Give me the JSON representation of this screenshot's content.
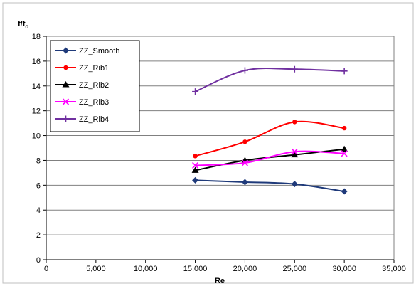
{
  "chart_data": {
    "type": "line",
    "xlabel": "Re",
    "ylabel_main": "f/f",
    "ylabel_sub": "o",
    "xlim": [
      0,
      35000
    ],
    "ylim": [
      0,
      18
    ],
    "x_ticks": [
      0,
      5000,
      10000,
      15000,
      20000,
      25000,
      30000,
      35000
    ],
    "x_tick_labels": [
      "0",
      "5,000",
      "10,000",
      "15,000",
      "20,000",
      "25,000",
      "30,000",
      "35,000"
    ],
    "y_ticks": [
      0,
      2,
      4,
      6,
      8,
      10,
      12,
      14,
      16,
      18
    ],
    "y_tick_labels": [
      "0",
      "2",
      "4",
      "6",
      "8",
      "10",
      "12",
      "14",
      "16",
      "18"
    ],
    "grid": "horizontal",
    "legend_placement": "top-left",
    "x": [
      15000,
      20000,
      25000,
      30000
    ],
    "series": [
      {
        "name": "ZZ_Smooth",
        "values": [
          6.4,
          6.25,
          6.1,
          5.5
        ],
        "color": "#1f3a7a",
        "marker": "diamond"
      },
      {
        "name": "ZZ_Rib1",
        "values": [
          8.35,
          9.5,
          11.1,
          10.6
        ],
        "color": "#ff0000",
        "marker": "dot"
      },
      {
        "name": "ZZ_Rib2",
        "values": [
          7.2,
          8.0,
          8.45,
          8.9
        ],
        "color": "#000000",
        "marker": "triangle"
      },
      {
        "name": "ZZ_Rib3",
        "values": [
          7.6,
          7.8,
          8.7,
          8.55
        ],
        "color": "#ff00ff",
        "marker": "cross"
      },
      {
        "name": "ZZ_Rib4",
        "values": [
          13.55,
          15.25,
          15.35,
          15.2
        ],
        "color": "#7030a0",
        "marker": "plus"
      }
    ]
  }
}
